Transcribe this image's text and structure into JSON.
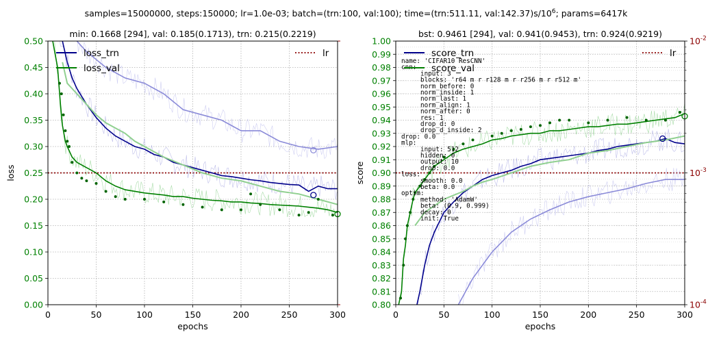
{
  "suptitle": "samples=15000000, steps:150000; lr=1.0e-03; batch=(trn:100, val:100); time=(trn:511.11, val:142.37)s/10",
  "suptitle_sup": "6",
  "suptitle_tail": "; params=6417k",
  "colors": {
    "trn_dark": "#00008b",
    "trn_light": "#8a8ad8",
    "trn_raw": "#a8a8e8",
    "val_dark": "#008000",
    "val_light": "#90d090",
    "val_raw": "#60c060",
    "points": "#006400",
    "lr": "#8b0000",
    "tick_green": "#008000",
    "tick_red": "#8b0000",
    "grid": "#b0b0b0"
  },
  "chart_data": [
    {
      "type": "line",
      "title": "min: 0.1668 [294], val: 0.185(0.1713), trn: 0.215(0.2219)",
      "xlabel": "epochs",
      "ylabel": "loss",
      "xlim": [
        0,
        300
      ],
      "ylim": [
        0,
        0.5
      ],
      "xticks": [
        "0",
        "50",
        "100",
        "150",
        "200",
        "250",
        "300"
      ],
      "yticks": [
        "0.00",
        "0.05",
        "0.10",
        "0.15",
        "0.20",
        "0.25",
        "0.30",
        "0.35",
        "0.40",
        "0.45",
        "0.50"
      ],
      "grid": true,
      "legend_left": [
        "loss_trn",
        "loss_val"
      ],
      "legend_right": [
        "lr"
      ],
      "lr_value": 0.001,
      "series": [
        {
          "name": "loss_trn",
          "style": "smooth",
          "x": [
            10,
            15,
            20,
            25,
            30,
            40,
            50,
            60,
            70,
            80,
            90,
            100,
            110,
            120,
            130,
            140,
            150,
            160,
            170,
            180,
            190,
            200,
            210,
            220,
            230,
            240,
            250,
            260,
            270,
            280,
            290,
            300
          ],
          "y": [
            0.52,
            0.5,
            0.46,
            0.43,
            0.41,
            0.38,
            0.355,
            0.335,
            0.32,
            0.31,
            0.3,
            0.295,
            0.285,
            0.28,
            0.27,
            0.265,
            0.26,
            0.255,
            0.25,
            0.245,
            0.243,
            0.24,
            0.237,
            0.235,
            0.232,
            0.23,
            0.228,
            0.227,
            0.215,
            0.225,
            0.22,
            0.22
          ]
        },
        {
          "name": "loss_val",
          "style": "smooth",
          "x": [
            5,
            10,
            13,
            15,
            18,
            20,
            25,
            30,
            35,
            40,
            50,
            60,
            70,
            80,
            90,
            100,
            110,
            120,
            130,
            140,
            150,
            160,
            170,
            180,
            190,
            200,
            210,
            220,
            230,
            240,
            250,
            260,
            270,
            280,
            290,
            300
          ],
          "y": [
            0.5,
            0.45,
            0.38,
            0.34,
            0.31,
            0.3,
            0.28,
            0.27,
            0.265,
            0.26,
            0.25,
            0.235,
            0.225,
            0.218,
            0.215,
            0.212,
            0.21,
            0.208,
            0.205,
            0.205,
            0.202,
            0.2,
            0.198,
            0.197,
            0.195,
            0.195,
            0.193,
            0.192,
            0.19,
            0.189,
            0.188,
            0.187,
            0.185,
            0.183,
            0.18,
            0.175
          ]
        },
        {
          "name": "val_light",
          "style": "light_green",
          "x": [
            15,
            20,
            30,
            40,
            50,
            60,
            70,
            80,
            90,
            100,
            120,
            140,
            160,
            180,
            200,
            220,
            240,
            260,
            280,
            300
          ],
          "y": [
            0.46,
            0.42,
            0.4,
            0.38,
            0.36,
            0.345,
            0.335,
            0.325,
            0.31,
            0.3,
            0.28,
            0.265,
            0.25,
            0.24,
            0.235,
            0.225,
            0.215,
            0.21,
            0.2,
            0.19
          ]
        },
        {
          "name": "trn_light",
          "style": "light_blue",
          "x": [
            30,
            40,
            60,
            80,
            100,
            120,
            140,
            160,
            180,
            200,
            220,
            240,
            260,
            280,
            300
          ],
          "y": [
            0.5,
            0.48,
            0.45,
            0.43,
            0.42,
            0.4,
            0.37,
            0.36,
            0.35,
            0.33,
            0.33,
            0.31,
            0.3,
            0.295,
            0.3
          ]
        }
      ],
      "points": {
        "x": [
          12,
          14,
          16,
          18,
          20,
          22,
          25,
          30,
          35,
          40,
          50,
          60,
          70,
          80,
          100,
          120,
          140,
          160,
          180,
          200,
          210,
          220,
          240,
          260,
          270,
          280,
          295
        ],
        "y": [
          0.42,
          0.4,
          0.36,
          0.33,
          0.31,
          0.3,
          0.27,
          0.25,
          0.24,
          0.235,
          0.23,
          0.215,
          0.205,
          0.2,
          0.2,
          0.195,
          0.19,
          0.185,
          0.18,
          0.18,
          0.21,
          0.19,
          0.18,
          0.17,
          0.175,
          0.2,
          0.17
        ]
      },
      "markers": [
        {
          "x": 275,
          "y": 0.293,
          "series": "trn_light"
        },
        {
          "x": 275,
          "y": 0.208,
          "series": "loss_trn"
        },
        {
          "x": 300,
          "y": 0.172,
          "series": "loss_val"
        }
      ]
    },
    {
      "type": "line",
      "title": "bst: 0.9461 [294], val: 0.941(0.9453),  trn:  0.924(0.9219)",
      "xlabel": "epochs",
      "ylabel": "score",
      "xlim": [
        0,
        300
      ],
      "ylim": [
        0.8,
        1.0
      ],
      "xticks": [
        "0",
        "50",
        "100",
        "150",
        "200",
        "250",
        "300"
      ],
      "yticks": [
        "0.80",
        "0.81",
        "0.82",
        "0.83",
        "0.84",
        "0.85",
        "0.86",
        "0.87",
        "0.88",
        "0.89",
        "0.90",
        "0.91",
        "0.92",
        "0.93",
        "0.94",
        "0.95",
        "0.96",
        "0.97",
        "0.98",
        "0.99",
        "1.00"
      ],
      "y2ticks": [
        "10",
        "10",
        "10"
      ],
      "y2ticks_sup": [
        "-4",
        "-3",
        "-2"
      ],
      "y2lim_log": [
        -4,
        -2
      ],
      "grid": true,
      "legend_left": [
        "score_trn",
        "score_val"
      ],
      "legend_right": [
        "lr"
      ],
      "lr_value": 0.001,
      "config_text": [
        "name: 'CIFAR10 ResCNN'",
        "cnn:",
        "     input: 3",
        "     blocks: 'r64 m r r128 m r r256 m r r512 m'",
        "     norm_before: 0",
        "     norm_inside: 1",
        "     norm_last: 1",
        "     norm_align: 1",
        "     norm_after: 0",
        "     res: 1",
        "     drop_d: 0",
        "     drop_d_inside: 2",
        "drop: 0.0",
        "mlp:",
        "     input: 512",
        "     hidden: 0",
        "     output: 10",
        "     drop: 0.0",
        "loss:",
        "     smooth: 0.0",
        "     beta: 0.0",
        "optim:",
        "     method: 'AdamW'",
        "     beta: (0.9, 0.999)",
        "     decay: 0",
        "     init: True"
      ],
      "series": [
        {
          "name": "score_trn",
          "style": "smooth",
          "x": [
            22,
            25,
            30,
            35,
            40,
            50,
            60,
            70,
            80,
            90,
            100,
            110,
            120,
            130,
            140,
            150,
            160,
            170,
            180,
            190,
            200,
            210,
            220,
            230,
            240,
            250,
            260,
            270,
            280,
            290,
            300
          ],
          "y": [
            0.8,
            0.81,
            0.83,
            0.845,
            0.855,
            0.87,
            0.878,
            0.885,
            0.89,
            0.895,
            0.898,
            0.9,
            0.902,
            0.905,
            0.907,
            0.91,
            0.911,
            0.912,
            0.913,
            0.914,
            0.915,
            0.917,
            0.918,
            0.92,
            0.921,
            0.922,
            0.923,
            0.924,
            0.926,
            0.923,
            0.922
          ]
        },
        {
          "name": "score_val",
          "style": "smooth",
          "x": [
            3,
            6,
            8,
            10,
            12,
            15,
            18,
            20,
            25,
            30,
            35,
            40,
            50,
            60,
            70,
            80,
            90,
            100,
            110,
            120,
            130,
            140,
            150,
            160,
            170,
            180,
            190,
            200,
            210,
            220,
            230,
            240,
            250,
            260,
            270,
            280,
            290,
            300
          ],
          "y": [
            0.8,
            0.81,
            0.835,
            0.845,
            0.86,
            0.87,
            0.88,
            0.885,
            0.89,
            0.895,
            0.9,
            0.905,
            0.91,
            0.915,
            0.918,
            0.92,
            0.922,
            0.925,
            0.926,
            0.928,
            0.929,
            0.93,
            0.93,
            0.932,
            0.932,
            0.933,
            0.934,
            0.935,
            0.935,
            0.936,
            0.937,
            0.937,
            0.938,
            0.939,
            0.94,
            0.941,
            0.942,
            0.945
          ]
        },
        {
          "name": "val_light",
          "style": "light_green",
          "x": [
            20,
            30,
            40,
            50,
            60,
            70,
            80,
            90,
            100,
            120,
            140,
            160,
            180,
            200,
            220,
            240,
            260,
            280,
            300
          ],
          "y": [
            0.86,
            0.87,
            0.875,
            0.88,
            0.883,
            0.886,
            0.89,
            0.893,
            0.895,
            0.9,
            0.905,
            0.908,
            0.91,
            0.915,
            0.917,
            0.92,
            0.923,
            0.925,
            0.928
          ]
        },
        {
          "name": "trn_light",
          "style": "light_blue",
          "x": [
            65,
            80,
            100,
            120,
            140,
            160,
            180,
            200,
            220,
            240,
            260,
            280,
            300
          ],
          "y": [
            0.8,
            0.82,
            0.84,
            0.855,
            0.865,
            0.872,
            0.878,
            0.882,
            0.885,
            0.888,
            0.892,
            0.895,
            0.895
          ]
        }
      ],
      "points": {
        "x": [
          5,
          8,
          10,
          12,
          15,
          18,
          20,
          25,
          30,
          35,
          40,
          50,
          60,
          70,
          80,
          100,
          110,
          120,
          130,
          140,
          150,
          160,
          170,
          180,
          200,
          220,
          240,
          260,
          280,
          295
        ],
        "y": [
          0.805,
          0.83,
          0.85,
          0.86,
          0.87,
          0.88,
          0.885,
          0.89,
          0.895,
          0.9,
          0.905,
          0.912,
          0.918,
          0.922,
          0.925,
          0.928,
          0.93,
          0.932,
          0.933,
          0.935,
          0.936,
          0.938,
          0.94,
          0.94,
          0.938,
          0.94,
          0.942,
          0.94,
          0.94,
          0.946
        ]
      },
      "markers": [
        {
          "x": 277,
          "y": 0.926,
          "series": "score_trn"
        },
        {
          "x": 300,
          "y": 0.943,
          "series": "score_val"
        }
      ]
    }
  ]
}
